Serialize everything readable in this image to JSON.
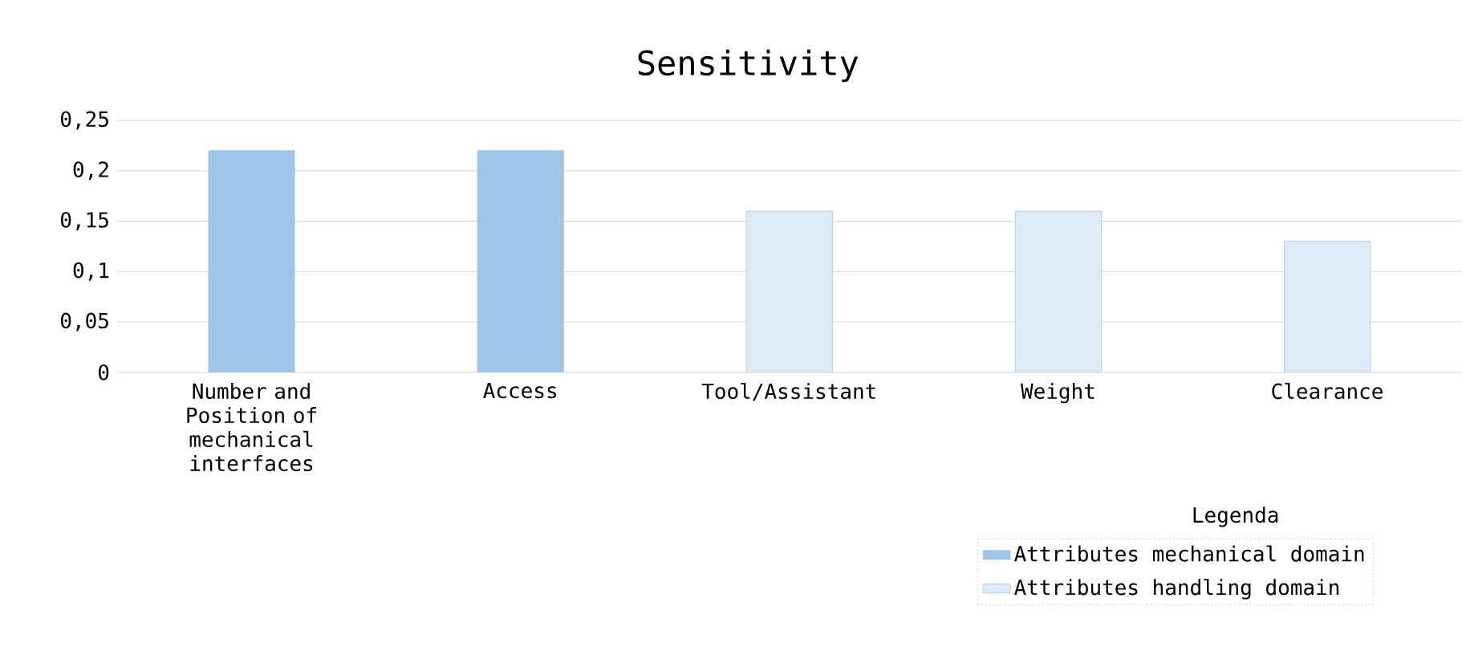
{
  "chart_data": {
    "type": "bar",
    "title": "Sensitivity",
    "categories": [
      "Number and Position of mechanical interfaces",
      "Access",
      "Tool/Assistant",
      "Weight",
      "Clearance"
    ],
    "series": [
      {
        "name": "Attributes mechanical domain",
        "color": "#9fc5e8",
        "values": [
          0.22,
          0.22,
          null,
          null,
          null
        ]
      },
      {
        "name": "Attributes handling domain",
        "color": "#deeaf6",
        "values": [
          null,
          null,
          0.16,
          0.16,
          0.13
        ]
      }
    ],
    "ylim": [
      0,
      0.25
    ],
    "yticks": [
      {
        "value": 0,
        "label": "0"
      },
      {
        "value": 0.05,
        "label": "0,05"
      },
      {
        "value": 0.1,
        "label": "0,1"
      },
      {
        "value": 0.15,
        "label": "0,15"
      },
      {
        "value": 0.2,
        "label": "0,2"
      },
      {
        "value": 0.25,
        "label": "0,25"
      }
    ],
    "grid": "y",
    "legend": "bottom right",
    "legend_title": "Legenda"
  }
}
